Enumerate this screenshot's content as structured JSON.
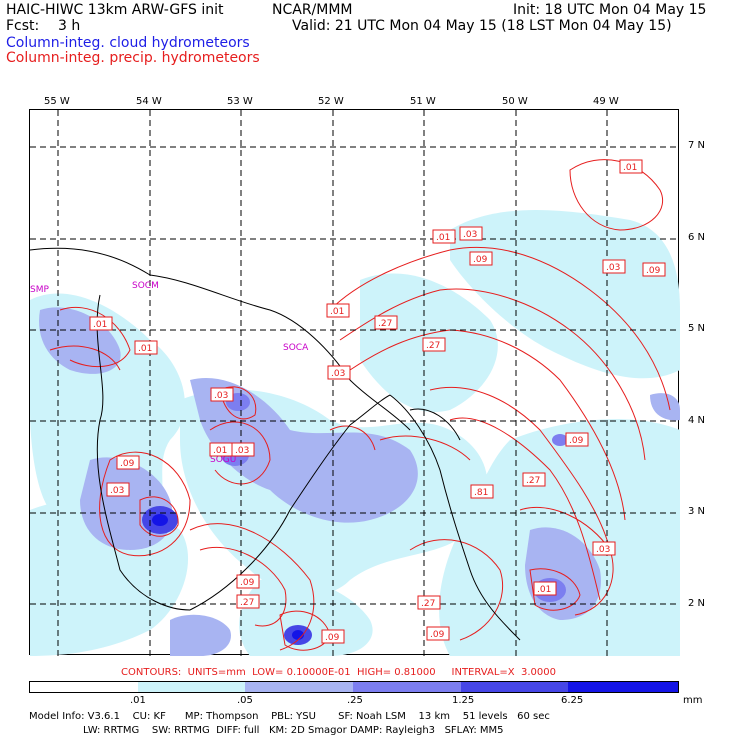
{
  "header": {
    "model_line": "HAIC-HIWC 13km ARW-GFS init",
    "org": "NCAR/MMM",
    "init": "Init: 18 UTC Mon 04 May 15",
    "fcst_label": "Fcst:",
    "fcst_value": "3 h",
    "valid": "Valid: 21 UTC Mon 04 May 15 (18 LST Mon 04 May 15)",
    "field1": "Column-integ. cloud hydrometeors",
    "field2": "Column-integ. precip. hydrometeors"
  },
  "axes": {
    "lon_labels": [
      "55 W",
      "54 W",
      "53 W",
      "52 W",
      "51 W",
      "50 W",
      "49 W"
    ],
    "lat_labels": [
      "7 N",
      "6 N",
      "5 N",
      "4 N",
      "3 N",
      "2 N"
    ]
  },
  "places": [
    "SMP",
    "SOCM",
    "SOCA",
    "SOGU"
  ],
  "contour_labels": [
    ".01",
    ".01",
    ".01",
    ".01",
    ".03",
    ".01",
    ".03",
    ".03",
    ".09",
    ".27",
    ".27",
    ".01",
    ".03",
    ".03",
    ".09",
    ".81",
    ".27",
    ".09",
    ".03",
    ".09",
    ".09",
    ".27",
    ".27",
    ".09",
    ".09",
    ".03",
    ".01"
  ],
  "contour_info": "CONTOURS:  UNITS=mm  LOW= 0.10000E-01  HIGH= 0.81000     INTERVAL=X  3.0000",
  "colorbar": {
    "ticks": [
      ".01",
      ".05",
      ".25",
      "1.25",
      "6.25"
    ],
    "unit": "mm",
    "colors": [
      "#ffffff",
      "#cdf3fa",
      "#a8b4f2",
      "#7c7ef0",
      "#4646e6",
      "#1414e6"
    ]
  },
  "footer": {
    "line1": "Model Info: V3.6.1    CU: KF      MP: Thompson    PBL: YSU       SF: Noah LSM    13 km    51 levels   60 sec",
    "line2": "                 LW: RRTMG    SW: RRTMG  DIFF: full   KM: 2D Smagor DAMP: Rayleigh3   SFLAY: MM5"
  },
  "colors": {
    "cloud": "#1e1ee6",
    "precip": "#e61e1e",
    "place": "#c800c8"
  }
}
